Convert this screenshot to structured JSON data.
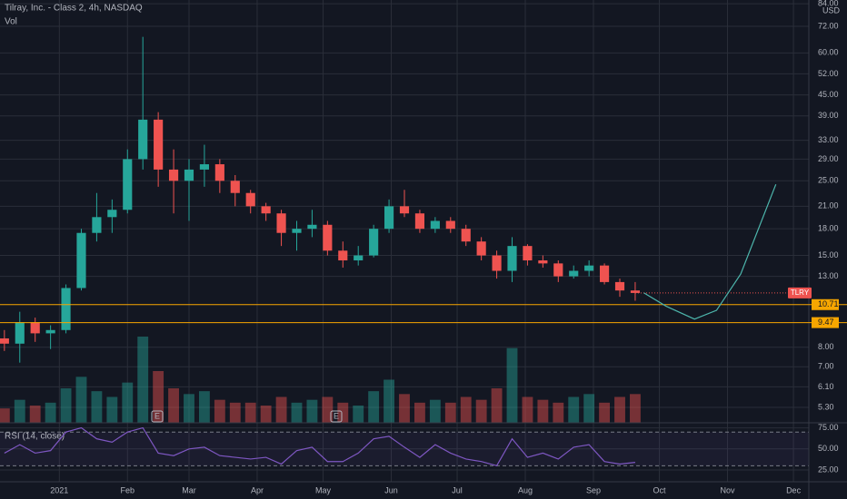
{
  "chart_data": {
    "type": "candlestick",
    "title": "Tilray, Inc. - Class 2, 4h, NASDAQ",
    "currency": "USD",
    "symbol": "TLRY",
    "log_scale": true,
    "grid": true,
    "up_color": "#26a69a",
    "down_color": "#ef5350",
    "x": [
      -25,
      -18,
      -11,
      -4,
      3,
      10,
      17,
      24,
      31,
      38,
      45,
      52,
      59,
      66,
      73,
      80,
      87,
      94,
      101,
      108,
      115,
      122,
      129,
      136,
      143,
      150,
      157,
      164,
      171,
      178,
      185,
      192,
      199,
      206,
      213,
      220,
      227,
      234,
      241,
      248,
      255,
      262
    ],
    "open": [
      8.5,
      8.2,
      9.5,
      8.8,
      9.0,
      12.0,
      17.5,
      19.5,
      20.5,
      29,
      38,
      27,
      25,
      27,
      28,
      25,
      23,
      21,
      20,
      17.5,
      18,
      18.5,
      15.5,
      14.5,
      15,
      18,
      21,
      20,
      18,
      19,
      18,
      16.5,
      15,
      13.5,
      16,
      14.5,
      14.2,
      13,
      13.5,
      14,
      12.5,
      11.8
    ],
    "high": [
      9.0,
      10.2,
      9.8,
      9.3,
      12.3,
      18.0,
      23,
      22,
      31,
      67,
      40,
      31,
      29,
      32,
      29,
      26,
      23.5,
      21.5,
      20.5,
      19,
      20.5,
      19,
      16.5,
      16,
      18.5,
      22,
      23.5,
      20.5,
      19.5,
      19.5,
      18.5,
      17,
      15.5,
      17,
      16.2,
      15,
      14.5,
      14,
      14.5,
      14.2,
      12.8,
      12.5
    ],
    "low": [
      7.8,
      7.2,
      8.3,
      7.9,
      8.8,
      11.8,
      16.5,
      17.5,
      20,
      27,
      24,
      20,
      19,
      24,
      23,
      21,
      20,
      19,
      16,
      15.5,
      17,
      15,
      13.8,
      14,
      14.8,
      17.5,
      19.5,
      17.5,
      17.5,
      17.5,
      16,
      14.5,
      12.8,
      12.5,
      14,
      13.8,
      12.5,
      12.8,
      13,
      12.3,
      11.3,
      11
    ],
    "close": [
      8.2,
      9.5,
      8.8,
      9.0,
      12.0,
      17.5,
      19.5,
      20.5,
      29,
      38,
      27,
      25,
      27,
      28,
      25,
      23,
      21,
      20,
      17.5,
      18,
      18.5,
      15.5,
      14.5,
      15,
      18,
      21,
      20,
      18,
      19,
      18,
      16.5,
      15,
      13.5,
      16,
      14.5,
      14.2,
      13,
      13.5,
      14,
      12.5,
      11.8,
      11.6
    ],
    "xlim": [
      -27,
      341
    ],
    "xticks": [
      {
        "value": 0,
        "label": "2021"
      },
      {
        "value": 31,
        "label": "Feb"
      },
      {
        "value": 59,
        "label": "Mar"
      },
      {
        "value": 90,
        "label": "Apr"
      },
      {
        "value": 120,
        "label": "May"
      },
      {
        "value": 151,
        "label": "Jun"
      },
      {
        "value": 181,
        "label": "Jul"
      },
      {
        "value": 212,
        "label": "Aug"
      },
      {
        "value": 243,
        "label": "Sep"
      },
      {
        "value": 273,
        "label": "Oct"
      },
      {
        "value": 304,
        "label": "Nov"
      },
      {
        "value": 334,
        "label": "Dec"
      }
    ],
    "ylim": [
      4.77,
      86.2
    ],
    "yticks": [
      {
        "value": 5.3,
        "label": "5.30"
      },
      {
        "value": 6.1,
        "label": "6.10"
      },
      {
        "value": 7,
        "label": "7.00"
      },
      {
        "value": 8,
        "label": "8.00"
      },
      {
        "value": 13,
        "label": "13.00"
      },
      {
        "value": 15,
        "label": "15.00"
      },
      {
        "value": 18,
        "label": "18.00"
      },
      {
        "value": 21,
        "label": "21.00"
      },
      {
        "value": 25,
        "label": "25.00"
      },
      {
        "value": 29,
        "label": "29.00"
      },
      {
        "value": 33,
        "label": "33.00"
      },
      {
        "value": 39,
        "label": "39.00"
      },
      {
        "value": 45,
        "label": "45.00"
      },
      {
        "value": 52,
        "label": "52.00"
      },
      {
        "value": 60,
        "label": "60.00"
      },
      {
        "value": 72,
        "label": "72.00"
      },
      {
        "value": 84,
        "label": "84.00"
      }
    ],
    "hlines": [
      10.71,
      9.47
    ],
    "hline_color": "#f7a600",
    "projection": {
      "x": [
        266,
        276,
        289,
        299,
        310,
        326
      ],
      "values": [
        11.6,
        10.6,
        9.7,
        10.3,
        13.2,
        24.4
      ],
      "color": "#4db6ac"
    },
    "volume": {
      "name": "Vol",
      "values": [
        25,
        40,
        30,
        35,
        60,
        80,
        55,
        45,
        70,
        150,
        90,
        60,
        50,
        55,
        40,
        35,
        35,
        30,
        45,
        35,
        40,
        45,
        35,
        30,
        55,
        75,
        50,
        35,
        40,
        35,
        45,
        40,
        60,
        130,
        45,
        40,
        35,
        45,
        50,
        35,
        45,
        50
      ]
    },
    "rsi": {
      "name": "RSI (14, close)",
      "color": "#7e57c2",
      "values": [
        45,
        55,
        45,
        48,
        70,
        75,
        62,
        58,
        70,
        75,
        45,
        42,
        50,
        52,
        42,
        40,
        38,
        40,
        32,
        48,
        52,
        35,
        35,
        45,
        62,
        65,
        52,
        40,
        55,
        45,
        38,
        35,
        30,
        62,
        40,
        45,
        38,
        52,
        55,
        35,
        32,
        34
      ],
      "ylim": [
        11,
        81
      ],
      "yticks": [
        {
          "value": 75,
          "label": "75.00"
        },
        {
          "value": 50,
          "label": "50.00"
        },
        {
          "value": 25,
          "label": "25.00"
        }
      ],
      "bands": [
        70,
        30
      ]
    }
  }
}
